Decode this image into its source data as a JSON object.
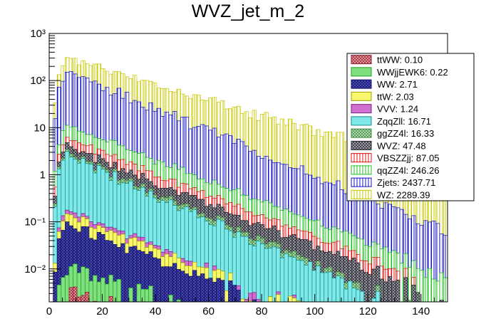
{
  "chart_data": {
    "type": "stacked-histogram",
    "title": "WVZ_jet_m_2",
    "xlabel": "",
    "ylabel": "",
    "xlim": [
      0,
      150
    ],
    "ylim": [
      0.002,
      1000
    ],
    "yscale": "log",
    "bin_width": 1.5,
    "x_ticks": [
      0,
      20,
      40,
      60,
      80,
      100,
      120,
      140
    ],
    "y_ticks": [
      {
        "value": 0.01,
        "label": "10⁻²"
      },
      {
        "value": 0.1,
        "label": "10⁻¹"
      },
      {
        "value": 1,
        "label": "1"
      },
      {
        "value": 10,
        "label": "10"
      },
      {
        "value": 100,
        "label": "10²"
      },
      {
        "value": 1000,
        "label": "10³"
      }
    ],
    "legend_position": "top-right",
    "series": [
      {
        "name": "ttWW",
        "legend": "ttWW: 0.10",
        "fill": "#f0a0a8",
        "line": "#8b1a2a",
        "pattern": "cross",
        "peak": 0.004,
        "tail": 0.04
      },
      {
        "name": "WWjjEWK6",
        "legend": "WWjjEWK6: 0.22",
        "fill": "#80e080",
        "line": "#20a020",
        "pattern": "solid",
        "peak": 0.009,
        "tail": 0.04
      },
      {
        "name": "WW",
        "legend": "WW: 2.71",
        "fill": "#5050c0",
        "line": "#101060",
        "pattern": "cross",
        "peak": 0.08,
        "tail": 0.05
      },
      {
        "name": "ttW",
        "legend": "ttW: 2.03",
        "fill": "#f8f870",
        "line": "#a0a000",
        "pattern": "solid",
        "peak": 0.05,
        "tail": 0.05
      },
      {
        "name": "VVV",
        "legend": "VVV: 1.24",
        "fill": "#d070d0",
        "line": "#802080",
        "pattern": "solid",
        "peak": 0.03,
        "tail": 0.05
      },
      {
        "name": "ZqqZll",
        "legend": "ZqqZll: 16.71",
        "fill": "#80e8e8",
        "line": "#109090",
        "pattern": "solid",
        "peak": 2.5,
        "tail": 0.06
      },
      {
        "name": "ggZZ4l",
        "legend": "ggZZ4l: 16.33",
        "fill": "#b8e8b8",
        "line": "#408040",
        "pattern": "cross",
        "peak": 0.35,
        "tail": 0.05
      },
      {
        "name": "WVZ",
        "legend": "WVZ: 47.48",
        "fill": "#a8a8b0",
        "line": "#202028",
        "pattern": "cross",
        "peak": 1.2,
        "tail": 0.045
      },
      {
        "name": "VBSZZjj",
        "legend": "VBSZZjj: 87.05",
        "fill": "#ffffff",
        "line": "#e01010",
        "pattern": "vlines",
        "peak": 2.0,
        "tail": 0.05
      },
      {
        "name": "qqZZ4l",
        "legend": "qqZZ4l: 246.26",
        "fill": "#ffffff",
        "line": "#20c020",
        "pattern": "vlines",
        "peak": 5.0,
        "tail": 0.048
      },
      {
        "name": "Zjets",
        "legend": "Zjets: 2437.71",
        "fill": "#ffffff",
        "line": "#1010c0",
        "pattern": "vlines",
        "peak": 150,
        "tail": 0.055
      },
      {
        "name": "WZ",
        "legend": "WZ: 2289.39",
        "fill": "#ffffff",
        "line": "#c8c800",
        "pattern": "vlines",
        "peak": 160,
        "tail": 0.032
      }
    ]
  }
}
